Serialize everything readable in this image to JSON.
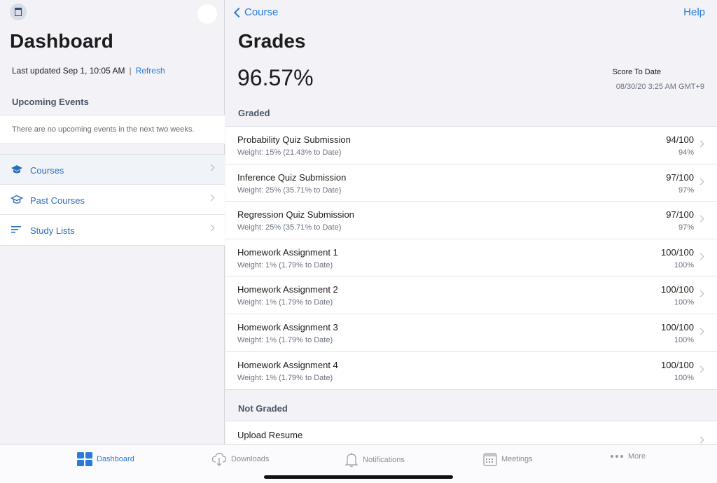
{
  "left": {
    "title": "Dashboard",
    "last_updated": "Last updated Sep 1, 10:05 AM",
    "separator": "|",
    "refresh": "Refresh",
    "events_title": "Upcoming Events",
    "events_empty": "There are no upcoming events in the next two weeks.",
    "nav": [
      {
        "label": "Courses",
        "icon": "graduation-cap-icon",
        "active": true
      },
      {
        "label": "Past Courses",
        "icon": "graduation-cap-outline-icon",
        "active": false
      },
      {
        "label": "Study Lists",
        "icon": "list-icon",
        "active": false
      }
    ]
  },
  "right": {
    "back_label": "Course",
    "help": "Help",
    "title": "Grades",
    "score": "96.57%",
    "score_label": "Score To Date",
    "score_date": "08/30/20 3:25 AM GMT+9",
    "graded_title": "Graded",
    "graded": [
      {
        "name": "Probability Quiz Submission",
        "weight": "Weight: 15% (21.43% to Date)",
        "points": "94/100",
        "percent": "94%"
      },
      {
        "name": "Inference Quiz Submission",
        "weight": "Weight: 25% (35.71% to Date)",
        "points": "97/100",
        "percent": "97%"
      },
      {
        "name": "Regression Quiz Submission",
        "weight": "Weight: 25% (35.71% to Date)",
        "points": "97/100",
        "percent": "97%"
      },
      {
        "name": "Homework Assignment 1",
        "weight": "Weight: 1% (1.79% to Date)",
        "points": "100/100",
        "percent": "100%"
      },
      {
        "name": "Homework Assignment 2",
        "weight": "Weight: 1% (1.79% to Date)",
        "points": "100/100",
        "percent": "100%"
      },
      {
        "name": "Homework Assignment 3",
        "weight": "Weight: 1% (1.79% to Date)",
        "points": "100/100",
        "percent": "100%"
      },
      {
        "name": "Homework Assignment 4",
        "weight": "Weight: 1% (1.79% to Date)",
        "points": "100/100",
        "percent": "100%"
      }
    ],
    "not_graded_title": "Not Graded",
    "not_graded": [
      {
        "name": "Upload Resume"
      }
    ]
  },
  "tabbar": {
    "tabs": [
      {
        "label": "Dashboard",
        "icon": "grid-icon",
        "active": true
      },
      {
        "label": "Downloads",
        "icon": "cloud-download-icon",
        "active": false
      },
      {
        "label": "Notifications",
        "icon": "bell-icon",
        "active": false
      },
      {
        "label": "Meetings",
        "icon": "calendar-icon",
        "active": false
      },
      {
        "label": "More",
        "icon": "more-icon",
        "active": false
      }
    ]
  },
  "colors": {
    "accent": "#2a7bd9",
    "background": "#f2f2f7",
    "secondary_text": "#6b7280"
  }
}
